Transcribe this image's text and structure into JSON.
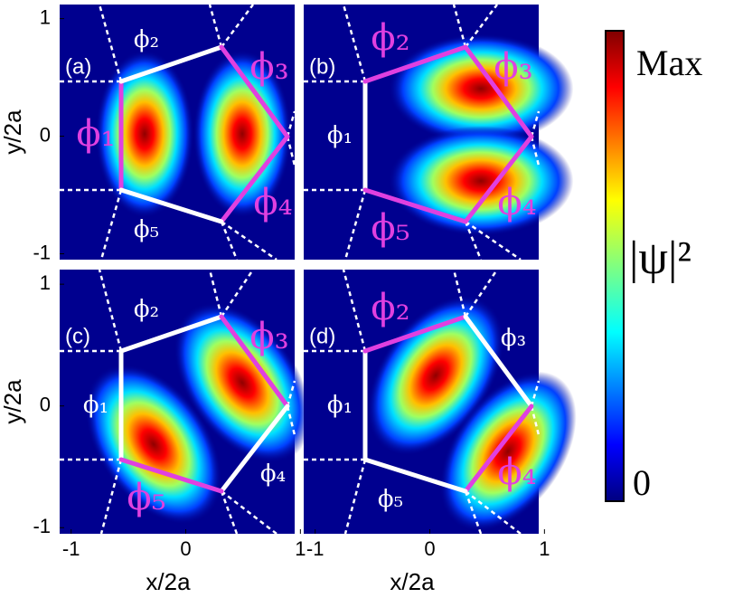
{
  "chart_data": [
    {
      "type": "heatmap",
      "label": "(a)",
      "xlim": [
        -1.1,
        0.95
      ],
      "ylim": [
        -1.05,
        1.12
      ],
      "yticks": [
        -1,
        0,
        1
      ],
      "ylabel": "y/2a",
      "regions": [
        {
          "label": "ϕ₁",
          "color": "#e040e0"
        },
        {
          "label": "ϕ₂",
          "color": "#ffffff"
        },
        {
          "label": "ϕ₃",
          "color": "#e040e0"
        },
        {
          "label": "ϕ₄",
          "color": "#e040e0"
        },
        {
          "label": "ϕ₅",
          "color": "#ffffff"
        }
      ]
    },
    {
      "type": "heatmap",
      "label": "(b)",
      "xlim": [
        -1.1,
        0.95
      ],
      "ylim": [
        -1.05,
        1.12
      ],
      "regions": [
        {
          "label": "ϕ₁",
          "color": "#ffffff"
        },
        {
          "label": "ϕ₂",
          "color": "#e040e0"
        },
        {
          "label": "ϕ₃",
          "color": "#e040e0"
        },
        {
          "label": "ϕ₄",
          "color": "#e040e0"
        },
        {
          "label": "ϕ₅",
          "color": "#e040e0"
        }
      ]
    },
    {
      "type": "heatmap",
      "label": "(c)",
      "xlim": [
        -1.1,
        0.95
      ],
      "ylim": [
        -1.05,
        1.12
      ],
      "xticks": [
        -1,
        0,
        1
      ],
      "yticks": [
        -1,
        0,
        1
      ],
      "xlabel": "x/2a",
      "ylabel": "y/2a",
      "regions": [
        {
          "label": "ϕ₁",
          "color": "#ffffff"
        },
        {
          "label": "ϕ₂",
          "color": "#ffffff"
        },
        {
          "label": "ϕ₃",
          "color": "#e040e0"
        },
        {
          "label": "ϕ₄",
          "color": "#ffffff"
        },
        {
          "label": "ϕ₅",
          "color": "#e040e0"
        }
      ]
    },
    {
      "type": "heatmap",
      "label": "(d)",
      "xlim": [
        -1.1,
        0.95
      ],
      "ylim": [
        -1.05,
        1.12
      ],
      "xticks": [
        -1,
        0,
        1
      ],
      "xlabel": "x/2a",
      "regions": [
        {
          "label": "ϕ₁",
          "color": "#ffffff"
        },
        {
          "label": "ϕ₂",
          "color": "#e040e0"
        },
        {
          "label": "ϕ₃",
          "color": "#ffffff"
        },
        {
          "label": "ϕ₄",
          "color": "#e040e0"
        },
        {
          "label": "ϕ₅",
          "color": "#ffffff"
        }
      ]
    }
  ],
  "colorbar": {
    "label": "|ψ|²",
    "max_label": "Max",
    "min": 0
  }
}
